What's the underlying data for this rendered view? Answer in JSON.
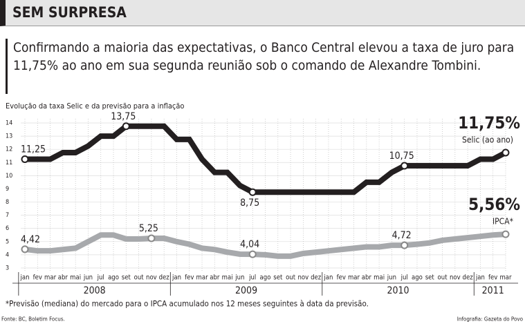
{
  "header": {
    "title": "SEM SURPRESA",
    "subtitle": "Confirmando a maioria das expectativas, o Banco Central elevou a taxa de juro para 11,75% ao ano em sua segunda reunião sob o comando de Alexandre Tombini."
  },
  "chart_data": {
    "type": "line",
    "title": "Evolução da taxa Selic e da previsão para a inflação",
    "categories": [
      "jan",
      "fev",
      "mar",
      "abr",
      "mai",
      "jun",
      "jul",
      "ago",
      "set",
      "out",
      "nov",
      "dez",
      "jan",
      "fev",
      "mar",
      "abr",
      "mai",
      "jun",
      "jul",
      "ago",
      "set",
      "out",
      "nov",
      "dez",
      "jan",
      "fev",
      "mar",
      "abr",
      "mai",
      "jun",
      "jul",
      "ago",
      "set",
      "out",
      "nov",
      "dez",
      "jan",
      "fev",
      "mar"
    ],
    "years": [
      "2008",
      "2009",
      "2010",
      "2011"
    ],
    "ylim": [
      3,
      14
    ],
    "yticks": [
      3,
      4,
      5,
      6,
      7,
      8,
      9,
      10,
      11,
      12,
      13,
      14
    ],
    "grid": true,
    "series": [
      {
        "name": "Selic (ao ano)",
        "color": "#231f20",
        "values": [
          11.25,
          11.25,
          11.25,
          11.75,
          11.75,
          12.25,
          13,
          13,
          13.75,
          13.75,
          13.75,
          13.75,
          12.75,
          12.75,
          11.25,
          10.25,
          10.25,
          9.25,
          8.75,
          8.75,
          8.75,
          8.75,
          8.75,
          8.75,
          8.75,
          8.75,
          8.75,
          9.5,
          9.5,
          10.25,
          10.75,
          10.75,
          10.75,
          10.75,
          10.75,
          10.75,
          11.25,
          11.25,
          11.75
        ],
        "value_labels": [
          "11,25",
          null,
          null,
          null,
          null,
          null,
          null,
          null,
          "13,75",
          null,
          null,
          null,
          null,
          null,
          null,
          null,
          null,
          null,
          "8,75",
          null,
          null,
          null,
          null,
          null,
          null,
          null,
          null,
          null,
          null,
          null,
          "10,75",
          null,
          null,
          null,
          null,
          null,
          null,
          null,
          "11,75%"
        ]
      },
      {
        "name": "IPCA*",
        "color": "#a7a9ac",
        "values": [
          4.42,
          4.3,
          4.3,
          4.4,
          4.5,
          5.0,
          5.5,
          5.5,
          5.2,
          5.2,
          5.25,
          5.25,
          5.0,
          4.8,
          4.5,
          4.4,
          4.2,
          4.05,
          4.04,
          4.0,
          3.9,
          3.9,
          4.1,
          4.2,
          4.3,
          4.4,
          4.5,
          4.6,
          4.6,
          4.72,
          4.72,
          4.8,
          4.9,
          5.1,
          5.2,
          5.3,
          5.4,
          5.5,
          5.56
        ],
        "value_labels": [
          "4,42",
          null,
          null,
          null,
          null,
          null,
          null,
          null,
          null,
          null,
          "5,25",
          null,
          null,
          null,
          null,
          null,
          null,
          null,
          "4,04",
          null,
          null,
          null,
          null,
          null,
          null,
          null,
          null,
          null,
          null,
          null,
          "4,72",
          null,
          null,
          null,
          null,
          null,
          null,
          null,
          "5,56%"
        ]
      }
    ],
    "footnote": "*Previsão (mediana) do mercado para o IPCA acumulado nos 12 meses seguintes à data da previsão.",
    "source": "Fonte: BC, Boletim Focus.",
    "credit": "Infografia: Gazeta do Povo"
  }
}
